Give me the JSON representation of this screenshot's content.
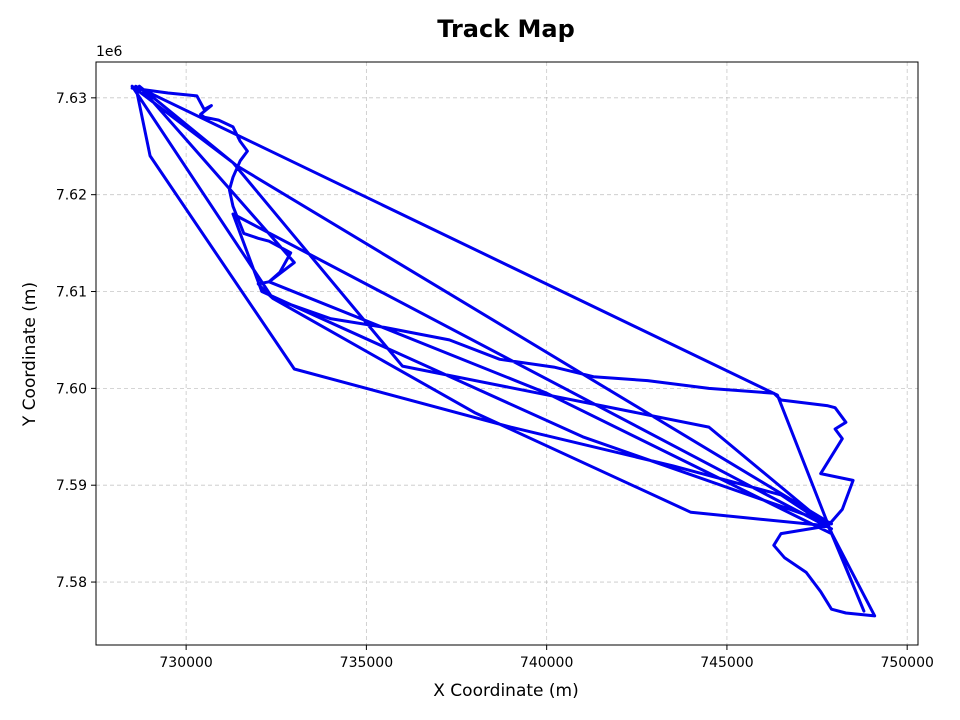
{
  "chart_data": {
    "type": "line",
    "title": "Track Map",
    "xlabel": "X Coordinate (m)",
    "ylabel": "Y Coordinate (m)",
    "y_offset_label": "1e6",
    "xlim": [
      727500,
      750300
    ],
    "ylim": [
      7.5735,
      7.6337
    ],
    "x_ticks": [
      730000,
      735000,
      740000,
      745000,
      750000
    ],
    "x_tick_labels": [
      "730000",
      "735000",
      "740000",
      "745000",
      "750000"
    ],
    "y_ticks": [
      7.58,
      7.59,
      7.6,
      7.61,
      7.62,
      7.63
    ],
    "y_tick_labels": [
      "7.58",
      "7.59",
      "7.60",
      "7.61",
      "7.62",
      "7.63"
    ],
    "grid": true,
    "color": "#0000ee",
    "series": [
      {
        "x": [
          728500,
          729500,
          730300,
          730500,
          730700,
          730400,
          730500,
          730900,
          731300,
          731500,
          731700,
          731500,
          731300,
          731200,
          731300,
          731600,
          732000,
          732300,
          732900,
          732600,
          732300,
          732000,
          732200,
          732400,
          734000,
          735500,
          737300,
          738700,
          740200,
          741300,
          742800,
          744500,
          746300,
          746500,
          747800,
          748000,
          748300,
          748000,
          748200,
          747600,
          748500,
          748200,
          747800,
          746500,
          746300,
          746600,
          747200,
          747600,
          747900,
          748300,
          749100,
          747800,
          744500,
          736000,
          731300,
          728500,
          732400,
          738000,
          744000,
          747800,
          746500,
          743500,
          739000,
          733000,
          729000,
          728600,
          746400,
          747800,
          748800,
          747900,
          740000,
          732300,
          733000,
          728700,
          731400,
          747900,
          741000,
          732100,
          731300,
          747900
        ],
        "y": [
          7.631,
          7.6305,
          7.6302,
          7.6288,
          7.6292,
          7.6283,
          7.628,
          7.6277,
          7.627,
          7.6255,
          7.6245,
          7.6235,
          7.6218,
          7.6205,
          7.6188,
          7.616,
          7.6155,
          7.6152,
          7.614,
          7.612,
          7.611,
          7.6108,
          7.61,
          7.6093,
          7.6072,
          7.6063,
          7.605,
          7.603,
          7.6022,
          7.6012,
          7.6008,
          7.6,
          7.5995,
          7.5988,
          7.5982,
          7.598,
          7.5965,
          7.5958,
          7.5948,
          7.5912,
          7.5905,
          7.5875,
          7.5858,
          7.585,
          7.5838,
          7.5825,
          7.581,
          7.579,
          7.5772,
          7.5768,
          7.5765,
          7.5858,
          7.596,
          7.6023,
          7.6233,
          7.6312,
          7.6093,
          7.5975,
          7.5872,
          7.5858,
          7.589,
          7.592,
          7.596,
          7.602,
          7.624,
          7.6312,
          7.5993,
          7.586,
          7.577,
          7.585,
          7.5995,
          7.611,
          7.613,
          7.6312,
          7.623,
          7.586,
          7.595,
          7.61,
          7.618,
          7.5855
        ]
      }
    ]
  }
}
